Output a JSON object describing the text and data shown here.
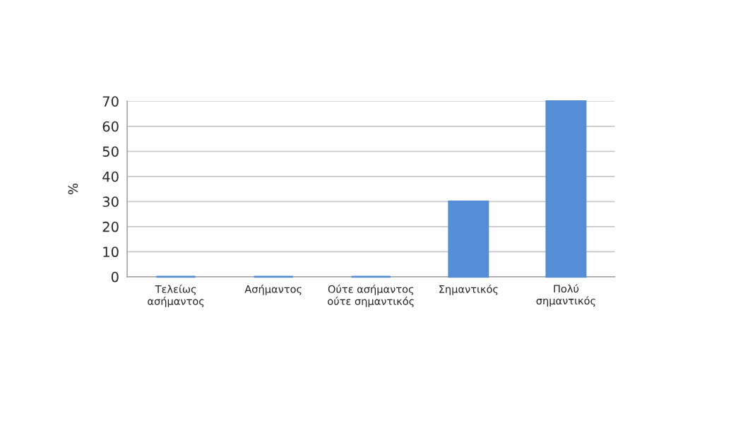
{
  "chart_data": {
    "type": "bar",
    "ylabel": "%",
    "categories": [
      "Τελείως\nασήμαντος",
      "Ασήμαντος",
      "Ούτε ασήμαντος\nούτε σημαντικός",
      "Σημαντικός",
      "Πολύ\nσημαντικός"
    ],
    "values": [
      0,
      0,
      0,
      30,
      70
    ],
    "color": "#558ed5",
    "ylim": [
      0,
      70
    ],
    "yticks": [
      0,
      10,
      20,
      30,
      40,
      50,
      60,
      70
    ],
    "grid": "y"
  }
}
